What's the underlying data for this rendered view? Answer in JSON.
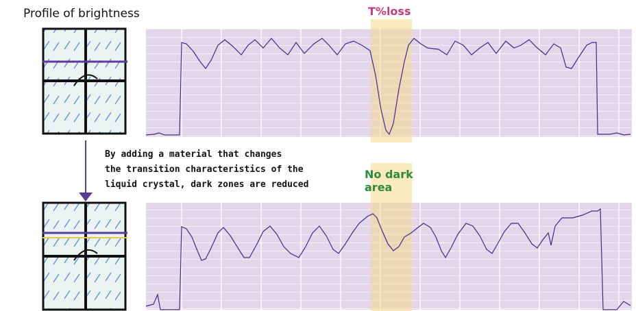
{
  "header": {
    "title": "Profile of brightness"
  },
  "top_panel": {
    "label": "T%loss"
  },
  "note": {
    "lines": [
      "By adding a material that changes",
      "the transition characteristics of the",
      "liquid crystal, dark zones are reduced"
    ]
  },
  "bottom_panel": {
    "label_lines": [
      "No dark",
      "area"
    ]
  }
}
